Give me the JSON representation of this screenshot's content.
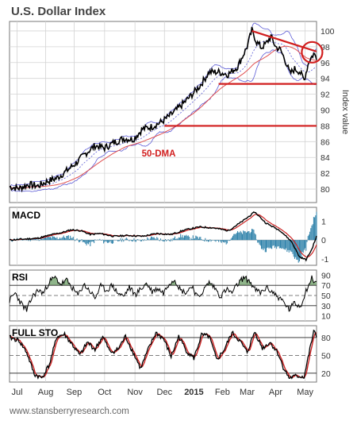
{
  "chart": {
    "title": "U.S. Dollar Index",
    "x_labels": [
      "Jul",
      "Aug",
      "Sep",
      "Oct",
      "Nov",
      "Dec",
      "2015",
      "Feb",
      "Mar",
      "Apr",
      "May"
    ],
    "footer": "www.stansberryresearch.com"
  },
  "chart_data": [
    {
      "type": "line",
      "panel": "price",
      "title": "U.S. Dollar Index",
      "ylabel": "Index value",
      "ylim": [
        78.3,
        101.2
      ],
      "yticks": [
        80,
        82,
        84,
        86,
        88,
        90,
        92,
        94,
        96,
        98,
        100
      ],
      "x_months": [
        "Jul",
        "Aug",
        "Sep",
        "Oct",
        "Nov",
        "Dec",
        "2015",
        "Feb",
        "Mar",
        "Apr",
        "May"
      ],
      "price_anchors": [
        [
          0,
          80.3
        ],
        [
          10,
          80.1
        ],
        [
          20,
          80.6
        ],
        [
          30,
          80.4
        ],
        [
          40,
          81.0
        ],
        [
          50,
          81.4
        ],
        [
          60,
          82.3
        ],
        [
          70,
          83.3
        ],
        [
          80,
          84.5
        ],
        [
          90,
          85.5
        ],
        [
          100,
          85.2
        ],
        [
          110,
          85.9
        ],
        [
          120,
          86.4
        ],
        [
          130,
          86.3
        ],
        [
          140,
          87.6
        ],
        [
          150,
          87.9
        ],
        [
          160,
          88.5
        ],
        [
          170,
          89.4
        ],
        [
          180,
          90.5
        ],
        [
          190,
          91.7
        ],
        [
          200,
          93.0
        ],
        [
          210,
          94.8
        ],
        [
          220,
          94.8
        ],
        [
          230,
          94.5
        ],
        [
          240,
          95.5
        ],
        [
          250,
          98.0
        ],
        [
          255,
          100.1
        ],
        [
          260,
          98.6
        ],
        [
          265,
          97.9
        ],
        [
          270,
          98.4
        ],
        [
          275,
          99.3
        ],
        [
          280,
          98.0
        ],
        [
          285,
          97.6
        ],
        [
          290,
          96.3
        ],
        [
          295,
          94.6
        ],
        [
          300,
          95.2
        ],
        [
          305,
          94.9
        ],
        [
          310,
          93.8
        ],
        [
          315,
          96.2
        ],
        [
          320,
          97.1
        ],
        [
          323,
          96.7
        ]
      ],
      "annotations": [
        {
          "text": "50-DMA",
          "color": "#d11e1e"
        }
      ],
      "levels": [
        93.3,
        88.0
      ],
      "resistance_line": [
        [
          255,
          100.0
        ],
        [
          323,
          97.4
        ]
      ],
      "circle_center": [
        320,
        97.3
      ],
      "series": []
    },
    {
      "type": "line",
      "panel": "MACD",
      "title": "MACD",
      "yticks": [
        1,
        0,
        -1
      ],
      "ylim": [
        -1.35,
        1.75
      ],
      "macd_anchors": [
        [
          0,
          0.0
        ],
        [
          15,
          0.05
        ],
        [
          30,
          0.1
        ],
        [
          45,
          0.3
        ],
        [
          55,
          0.4
        ],
        [
          65,
          0.55
        ],
        [
          75,
          0.5
        ],
        [
          85,
          0.3
        ],
        [
          95,
          0.35
        ],
        [
          110,
          0.2
        ],
        [
          125,
          0.25
        ],
        [
          140,
          0.2
        ],
        [
          155,
          0.35
        ],
        [
          170,
          0.3
        ],
        [
          185,
          0.55
        ],
        [
          200,
          0.7
        ],
        [
          215,
          0.65
        ],
        [
          230,
          0.5
        ],
        [
          245,
          1.0
        ],
        [
          258,
          1.5
        ],
        [
          270,
          0.9
        ],
        [
          285,
          0.5
        ],
        [
          297,
          -0.1
        ],
        [
          305,
          -0.9
        ],
        [
          312,
          -1.05
        ],
        [
          318,
          -0.5
        ],
        [
          323,
          0.2
        ]
      ],
      "series": [
        {
          "name": "",
          "color": "#000000"
        },
        {
          "name": "",
          "color": "#cc2222"
        }
      ]
    },
    {
      "type": "line",
      "panel": "RSI",
      "title": "RSI",
      "yticks": [
        90,
        70,
        50,
        30,
        10
      ],
      "ylim": [
        0,
        100
      ],
      "rsi_anchors": [
        [
          0,
          40
        ],
        [
          6,
          55
        ],
        [
          12,
          35
        ],
        [
          18,
          20
        ],
        [
          24,
          48
        ],
        [
          30,
          60
        ],
        [
          36,
          55
        ],
        [
          42,
          78
        ],
        [
          48,
          85
        ],
        [
          54,
          72
        ],
        [
          60,
          80
        ],
        [
          66,
          65
        ],
        [
          72,
          50
        ],
        [
          78,
          72
        ],
        [
          84,
          60
        ],
        [
          90,
          45
        ],
        [
          96,
          68
        ],
        [
          102,
          60
        ],
        [
          108,
          70
        ],
        [
          114,
          55
        ],
        [
          120,
          48
        ],
        [
          126,
          66
        ],
        [
          132,
          52
        ],
        [
          138,
          62
        ],
        [
          144,
          74
        ],
        [
          150,
          58
        ],
        [
          156,
          64
        ],
        [
          162,
          55
        ],
        [
          168,
          75
        ],
        [
          174,
          82
        ],
        [
          180,
          60
        ],
        [
          186,
          56
        ],
        [
          192,
          70
        ],
        [
          198,
          45
        ],
        [
          204,
          60
        ],
        [
          210,
          76
        ],
        [
          216,
          65
        ],
        [
          222,
          48
        ],
        [
          228,
          62
        ],
        [
          234,
          55
        ],
        [
          240,
          72
        ],
        [
          246,
          85
        ],
        [
          252,
          80
        ],
        [
          258,
          62
        ],
        [
          264,
          55
        ],
        [
          270,
          65
        ],
        [
          276,
          58
        ],
        [
          282,
          48
        ],
        [
          288,
          38
        ],
        [
          294,
          22
        ],
        [
          300,
          35
        ],
        [
          306,
          28
        ],
        [
          312,
          60
        ],
        [
          318,
          84
        ],
        [
          323,
          74
        ]
      ],
      "series": [
        {
          "name": "",
          "color": "#000000"
        }
      ]
    },
    {
      "type": "line",
      "panel": "FULL STO",
      "title": "FULL STO",
      "yticks": [
        80,
        50,
        20
      ],
      "ylim": [
        5,
        100
      ],
      "sto_anchors": [
        [
          0,
          80
        ],
        [
          10,
          75
        ],
        [
          18,
          55
        ],
        [
          26,
          18
        ],
        [
          34,
          12
        ],
        [
          42,
          35
        ],
        [
          50,
          82
        ],
        [
          58,
          85
        ],
        [
          66,
          68
        ],
        [
          74,
          50
        ],
        [
          82,
          72
        ],
        [
          90,
          60
        ],
        [
          98,
          82
        ],
        [
          106,
          55
        ],
        [
          114,
          60
        ],
        [
          122,
          82
        ],
        [
          130,
          55
        ],
        [
          138,
          28
        ],
        [
          146,
          60
        ],
        [
          154,
          88
        ],
        [
          162,
          78
        ],
        [
          170,
          48
        ],
        [
          178,
          82
        ],
        [
          186,
          58
        ],
        [
          194,
          45
        ],
        [
          202,
          84
        ],
        [
          210,
          82
        ],
        [
          218,
          42
        ],
        [
          226,
          60
        ],
        [
          234,
          88
        ],
        [
          242,
          75
        ],
        [
          250,
          55
        ],
        [
          258,
          90
        ],
        [
          266,
          62
        ],
        [
          274,
          72
        ],
        [
          282,
          55
        ],
        [
          288,
          30
        ],
        [
          294,
          12
        ],
        [
          302,
          15
        ],
        [
          310,
          14
        ],
        [
          316,
          60
        ],
        [
          320,
          90
        ],
        [
          323,
          82
        ]
      ],
      "series": [
        {
          "name": "",
          "color": "#000000"
        },
        {
          "name": "",
          "color": "#cc2222"
        }
      ]
    }
  ]
}
